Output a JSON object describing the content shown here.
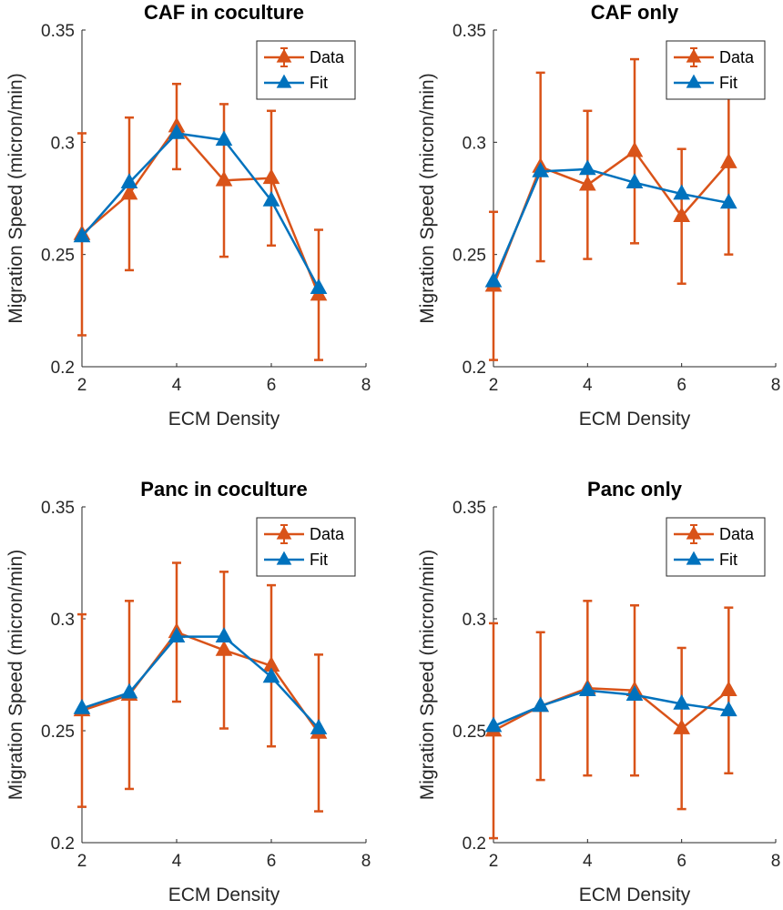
{
  "colors": {
    "data": "#d95319",
    "fit": "#0072bd",
    "axis": "#262626"
  },
  "chart_data": [
    {
      "type": "line",
      "title": "CAF in coculture",
      "xlabel": "ECM Density",
      "ylabel": "Migration Speed (micron/min)",
      "xlim": [
        2,
        8
      ],
      "ylim": [
        0.2,
        0.35
      ],
      "xticks": [
        2,
        4,
        6,
        8
      ],
      "xtick_labels": [
        "2",
        "4",
        "6",
        "8"
      ],
      "yticks": [
        0.2,
        0.25,
        0.3,
        0.35
      ],
      "ytick_labels": [
        "0.2",
        "0.25",
        "0.3",
        "0.35"
      ],
      "legend": {
        "location": "top-right",
        "entries": [
          "Data",
          "Fit"
        ]
      },
      "series": [
        {
          "name": "Data",
          "x": [
            2,
            3,
            4,
            5,
            6,
            7
          ],
          "y": [
            0.259,
            0.277,
            0.307,
            0.283,
            0.284,
            0.232
          ],
          "error": [
            0.045,
            0.034,
            0.019,
            0.034,
            0.03,
            0.029
          ]
        },
        {
          "name": "Fit",
          "x": [
            2,
            3,
            4,
            5,
            6,
            7
          ],
          "y": [
            0.258,
            0.282,
            0.304,
            0.301,
            0.274,
            0.235
          ]
        }
      ]
    },
    {
      "type": "line",
      "title": "CAF only",
      "xlabel": "ECM Density",
      "ylabel": "Migration Speed (micron/min)",
      "xlim": [
        2,
        8
      ],
      "ylim": [
        0.2,
        0.35
      ],
      "xticks": [
        2,
        4,
        6,
        8
      ],
      "xtick_labels": [
        "2",
        "4",
        "6",
        "8"
      ],
      "yticks": [
        0.2,
        0.25,
        0.3,
        0.35
      ],
      "ytick_labels": [
        "0.2",
        "0.25",
        "0.3",
        "0.35"
      ],
      "legend": {
        "location": "top-right",
        "entries": [
          "Data",
          "Fit"
        ]
      },
      "series": [
        {
          "name": "Data",
          "x": [
            2,
            3,
            4,
            5,
            6,
            7
          ],
          "y": [
            0.236,
            0.289,
            0.281,
            0.296,
            0.267,
            0.291
          ],
          "error": [
            0.033,
            0.042,
            0.033,
            0.041,
            0.03,
            0.041
          ]
        },
        {
          "name": "Fit",
          "x": [
            2,
            3,
            4,
            5,
            6,
            7
          ],
          "y": [
            0.238,
            0.287,
            0.288,
            0.282,
            0.277,
            0.273
          ]
        }
      ]
    },
    {
      "type": "line",
      "title": "Panc in coculture",
      "xlabel": "ECM Density",
      "ylabel": "Migration Speed (micron/min)",
      "xlim": [
        2,
        8
      ],
      "ylim": [
        0.2,
        0.35
      ],
      "xticks": [
        2,
        4,
        6,
        8
      ],
      "xtick_labels": [
        "2",
        "4",
        "6",
        "8"
      ],
      "yticks": [
        0.2,
        0.25,
        0.3,
        0.35
      ],
      "ytick_labels": [
        "0.2",
        "0.25",
        "0.3",
        "0.35"
      ],
      "legend": {
        "location": "top-right",
        "entries": [
          "Data",
          "Fit"
        ]
      },
      "series": [
        {
          "name": "Data",
          "x": [
            2,
            3,
            4,
            5,
            6,
            7
          ],
          "y": [
            0.259,
            0.266,
            0.294,
            0.286,
            0.279,
            0.249
          ],
          "error": [
            0.043,
            0.042,
            0.031,
            0.035,
            0.036,
            0.035
          ]
        },
        {
          "name": "Fit",
          "x": [
            2,
            3,
            4,
            5,
            6,
            7
          ],
          "y": [
            0.26,
            0.267,
            0.292,
            0.292,
            0.274,
            0.251
          ]
        }
      ]
    },
    {
      "type": "line",
      "title": "Panc only",
      "xlabel": "ECM Density",
      "ylabel": "Migration Speed (micron/min)",
      "xlim": [
        2,
        8
      ],
      "ylim": [
        0.2,
        0.35
      ],
      "xticks": [
        2,
        4,
        6,
        8
      ],
      "xtick_labels": [
        "2",
        "4",
        "6",
        "8"
      ],
      "yticks": [
        0.2,
        0.25,
        0.3,
        0.35
      ],
      "ytick_labels": [
        "0.2",
        "0.25",
        "0.3",
        "0.35"
      ],
      "legend": {
        "location": "top-right",
        "entries": [
          "Data",
          "Fit"
        ]
      },
      "series": [
        {
          "name": "Data",
          "x": [
            2,
            3,
            4,
            5,
            6,
            7
          ],
          "y": [
            0.25,
            0.261,
            0.269,
            0.268,
            0.251,
            0.268
          ],
          "error": [
            0.048,
            0.033,
            0.039,
            0.038,
            0.036,
            0.037
          ]
        },
        {
          "name": "Fit",
          "x": [
            2,
            3,
            4,
            5,
            6,
            7
          ],
          "y": [
            0.252,
            0.261,
            0.268,
            0.266,
            0.262,
            0.259
          ]
        }
      ]
    }
  ]
}
